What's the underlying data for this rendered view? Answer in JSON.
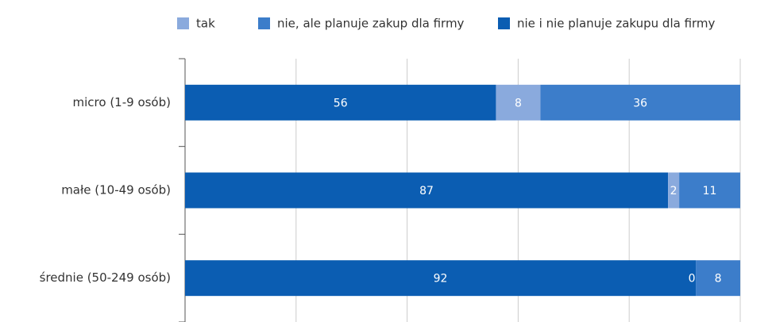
{
  "chart_data": {
    "type": "stacked-bar-horizontal",
    "categories": [
      "micro (1-9 osób)",
      "małe (10-49 osób)",
      "średnie (50-249 osób)"
    ],
    "series": [
      {
        "name": "tak",
        "color": "#8aaadd",
        "values": [
          8,
          2,
          0
        ]
      },
      {
        "name": "nie, ale planuje zakup dla firmy",
        "color": "#3c7dca",
        "values": [
          36,
          11,
          8
        ]
      },
      {
        "name": "nie i nie planuje zakupu dla firmy",
        "color": "#0b5db2",
        "values": [
          56,
          87,
          92
        ]
      }
    ],
    "xlim": [
      0,
      100
    ],
    "xticks": [
      0,
      20,
      40,
      60,
      80,
      100
    ],
    "grid": true,
    "legend": "top"
  }
}
